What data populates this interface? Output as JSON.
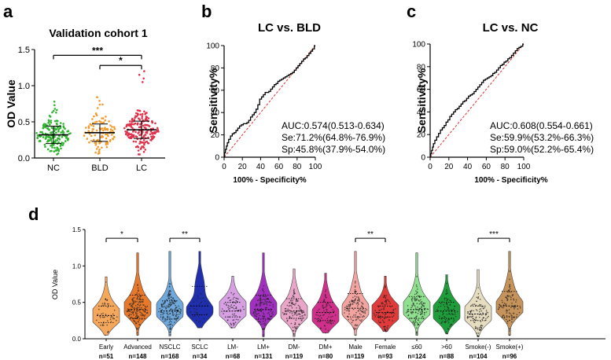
{
  "chart_data": [
    {
      "panel": "a",
      "type": "scatter",
      "title": "Validation cohort 1",
      "ylabel": "OD Value",
      "ylim": [
        0,
        1.5
      ],
      "yticks": [
        "0.0",
        "0.5",
        "1.0",
        "1.5"
      ],
      "yticks_values": [
        0,
        0.5,
        1.0,
        1.5
      ],
      "categories": [
        "NC",
        "BLD",
        "LC"
      ],
      "colors": [
        "#2fb52f",
        "#f29b2e",
        "#e0314a"
      ],
      "medians": [
        0.32,
        0.35,
        0.39
      ],
      "ranges": [
        [
          0.05,
          0.78
        ],
        [
          0.06,
          0.84
        ],
        [
          0.05,
          1.2
        ]
      ],
      "counts": [
        170,
        110,
        190
      ],
      "significance": [
        {
          "from": "NC",
          "to": "LC",
          "label": "***"
        },
        {
          "from": "BLD",
          "to": "LC",
          "label": "*"
        }
      ]
    },
    {
      "panel": "b",
      "type": "line",
      "title": "LC vs. BLD",
      "xlabel": "100% - Specificity%",
      "ylabel": "Sensitivity%",
      "xlim": [
        0,
        100
      ],
      "ylim": [
        0,
        100
      ],
      "ticks": [
        "0",
        "20",
        "40",
        "60",
        "80",
        "100"
      ],
      "ticks_values": [
        0,
        20,
        40,
        60,
        80,
        100
      ],
      "roc_x": [
        0,
        1,
        2,
        3,
        4,
        6,
        8,
        10,
        12,
        14,
        16,
        18,
        20,
        22,
        24,
        26,
        28,
        30,
        32,
        34,
        36,
        38,
        40,
        42,
        44,
        46,
        48,
        50,
        52,
        54,
        56,
        58,
        60,
        62,
        64,
        66,
        68,
        70,
        72,
        74,
        76,
        78,
        80,
        82,
        84,
        86,
        88,
        90,
        92,
        94,
        96,
        98,
        100
      ],
      "roc_y": [
        0,
        4,
        7,
        10,
        13,
        16,
        19,
        21,
        22,
        24,
        26,
        28,
        29,
        30,
        30,
        31,
        33,
        36,
        38,
        40,
        43,
        47,
        52,
        54,
        56,
        58,
        58,
        59,
        61,
        63,
        65,
        66,
        68,
        69,
        70,
        71,
        72,
        73,
        74,
        75,
        76,
        78,
        80,
        82,
        84,
        86,
        88,
        89,
        91,
        93,
        95,
        97,
        100
      ],
      "reference_line": [
        [
          0,
          0
        ],
        [
          100,
          100
        ]
      ],
      "auc_text": "AUC:0.574(0.513-0.634)",
      "se_text": "Se:71.2%(64.8%-76.9%)",
      "sp_text": "Sp:45.8%(37.9%-54.0%)"
    },
    {
      "panel": "c",
      "type": "line",
      "title": "LC vs. NC",
      "xlabel": "100% - Specificity%",
      "ylabel": "Sensitivity%",
      "xlim": [
        0,
        100
      ],
      "ylim": [
        0,
        100
      ],
      "ticks": [
        "0",
        "20",
        "40",
        "60",
        "80",
        "100"
      ],
      "ticks_values": [
        0,
        20,
        40,
        60,
        80,
        100
      ],
      "roc_x": [
        0,
        1,
        2,
        3,
        4,
        6,
        8,
        10,
        12,
        14,
        16,
        18,
        20,
        22,
        24,
        26,
        28,
        30,
        32,
        34,
        36,
        38,
        40,
        42,
        44,
        46,
        48,
        50,
        52,
        54,
        56,
        58,
        60,
        62,
        64,
        66,
        68,
        70,
        72,
        74,
        76,
        78,
        80,
        82,
        84,
        86,
        88,
        90,
        92,
        94,
        96,
        98,
        100
      ],
      "roc_y": [
        0,
        3,
        6,
        9,
        12,
        15,
        18,
        21,
        24,
        26,
        28,
        31,
        33,
        36,
        38,
        40,
        42,
        43,
        45,
        47,
        49,
        50,
        52,
        54,
        55,
        56,
        58,
        60,
        62,
        64,
        66,
        68,
        69,
        70,
        71,
        72,
        74,
        75,
        77,
        79,
        81,
        82,
        84,
        85,
        87,
        88,
        90,
        92,
        94,
        96,
        97,
        98,
        100
      ],
      "reference_line": [
        [
          0,
          0
        ],
        [
          100,
          100
        ]
      ],
      "auc_text": "AUC:0.608(0.554-0.661)",
      "se_text": "Se:59.9%(53.2%-66.3%)",
      "sp_text": "Sp:59.0%(52.2%-65.4%)"
    },
    {
      "panel": "d",
      "type": "violin",
      "ylabel": "OD Value",
      "ylim": [
        0,
        1.5
      ],
      "yticks": [
        "0.0",
        "0.5",
        "1.0",
        "1.5"
      ],
      "yticks_values": [
        0,
        0.5,
        1.0,
        1.5
      ],
      "groups": [
        {
          "name": "Early",
          "n": "n=51",
          "color": "#f5a85c",
          "median": 0.32,
          "q1": 0.22,
          "q3": 0.45,
          "min": 0.05,
          "max": 0.85,
          "mode": 0.3
        },
        {
          "name": "Advanced",
          "n": "n=148",
          "color": "#e8792b",
          "median": 0.4,
          "q1": 0.28,
          "q3": 0.6,
          "min": 0.05,
          "max": 1.18,
          "mode": 0.4
        },
        {
          "name": "NSCLC",
          "n": "n=168",
          "color": "#6fa8dc",
          "median": 0.38,
          "q1": 0.27,
          "q3": 0.52,
          "min": 0.04,
          "max": 1.2,
          "mode": 0.38
        },
        {
          "name": "SCLC",
          "n": "n=34",
          "color": "#1f2fae",
          "median": 0.45,
          "q1": 0.33,
          "q3": 0.72,
          "min": 0.15,
          "max": 1.2,
          "mode": 0.38
        },
        {
          "name": "LM-",
          "n": "n=68",
          "color": "#d7a0e3",
          "median": 0.38,
          "q1": 0.3,
          "q3": 0.5,
          "min": 0.15,
          "max": 0.86,
          "mode": 0.4
        },
        {
          "name": "LM+",
          "n": "n=131",
          "color": "#a12fbf",
          "median": 0.4,
          "q1": 0.27,
          "q3": 0.6,
          "min": 0.03,
          "max": 1.18,
          "mode": 0.4
        },
        {
          "name": "DM-",
          "n": "n=119",
          "color": "#e9a6c8",
          "median": 0.38,
          "q1": 0.28,
          "q3": 0.55,
          "min": 0.03,
          "max": 0.96,
          "mode": 0.35
        },
        {
          "name": "DM+",
          "n": "n=80",
          "color": "#d0308c",
          "median": 0.36,
          "q1": 0.25,
          "q3": 0.5,
          "min": 0.08,
          "max": 0.9,
          "mode": 0.3
        },
        {
          "name": "Male",
          "n": "n=119",
          "color": "#f3a4a0",
          "median": 0.42,
          "q1": 0.3,
          "q3": 0.62,
          "min": 0.05,
          "max": 1.2,
          "mode": 0.38
        },
        {
          "name": "Female",
          "n": "n=93",
          "color": "#e03a3a",
          "median": 0.36,
          "q1": 0.3,
          "q3": 0.45,
          "min": 0.1,
          "max": 0.86,
          "mode": 0.35
        },
        {
          "name": "≤60",
          "n": "n=124",
          "color": "#8fe08f",
          "median": 0.4,
          "q1": 0.28,
          "q3": 0.58,
          "min": 0.05,
          "max": 1.18,
          "mode": 0.4
        },
        {
          "name": ">60",
          "n": "n=88",
          "color": "#1e9e3a",
          "median": 0.38,
          "q1": 0.28,
          "q3": 0.5,
          "min": 0.07,
          "max": 0.88,
          "mode": 0.35
        },
        {
          "name": "Smoke(-)",
          "n": "n=104",
          "color": "#e6dcc0",
          "median": 0.34,
          "q1": 0.25,
          "q3": 0.45,
          "min": 0.03,
          "max": 0.95,
          "mode": 0.33
        },
        {
          "name": "Smoke(+)",
          "n": "n=96",
          "color": "#c6945a",
          "median": 0.45,
          "q1": 0.3,
          "q3": 0.65,
          "min": 0.05,
          "max": 1.2,
          "mode": 0.42
        }
      ],
      "significance": [
        {
          "from": "Early",
          "to": "Advanced",
          "label": "*"
        },
        {
          "from": "NSCLC",
          "to": "SCLC",
          "label": "**"
        },
        {
          "from": "Male",
          "to": "Female",
          "label": "**"
        },
        {
          "from": "Smoke(-)",
          "to": "Smoke(+)",
          "label": "***"
        }
      ]
    }
  ],
  "panel_labels": {
    "a": "a",
    "b": "b",
    "c": "c",
    "d": "d"
  }
}
